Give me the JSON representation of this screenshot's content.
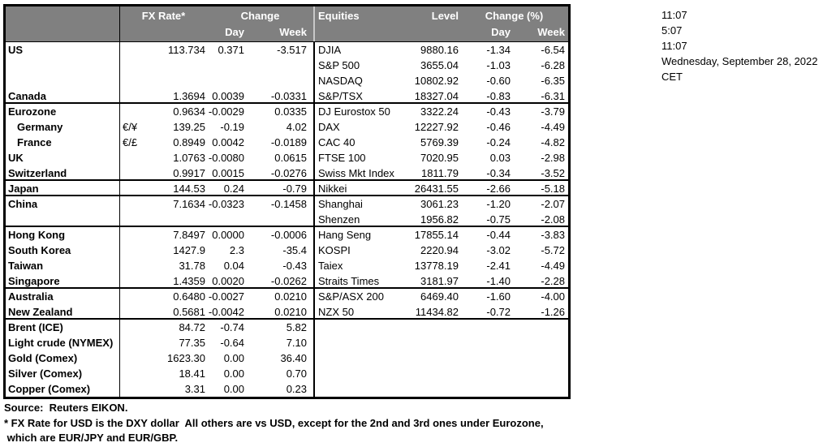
{
  "meta": {
    "times": [
      "11:07",
      "5:07",
      "11:07"
    ],
    "date": "Wednesday, September 28, 2022",
    "timezone": "CET"
  },
  "table": {
    "fx_header": {
      "rate": "FX Rate*",
      "change": "Change",
      "day": "Day",
      "week": "Week"
    },
    "eq_header": {
      "name": "Equities",
      "level": "Level",
      "change": "Change (%)",
      "day": "Day",
      "week": "Week"
    },
    "rows": [
      {
        "country": "US",
        "pair": "",
        "rate": "113.734",
        "day": "0.371",
        "week": "-3.517",
        "eq": "DJIA",
        "level": "9880.16",
        "eday": "-1.34",
        "eweek": "-6.54",
        "indent": false,
        "section_end": false
      },
      {
        "country": "",
        "pair": "",
        "rate": "",
        "day": "",
        "week": "",
        "eq": "S&P 500",
        "level": "3655.04",
        "eday": "-1.03",
        "eweek": "-6.28",
        "indent": false,
        "section_end": false
      },
      {
        "country": "",
        "pair": "",
        "rate": "",
        "day": "",
        "week": "",
        "eq": "NASDAQ",
        "level": "10802.92",
        "eday": "-0.60",
        "eweek": "-6.35",
        "indent": false,
        "section_end": false
      },
      {
        "country": "Canada",
        "pair": "",
        "rate": "1.3694",
        "day": "0.0039",
        "week": "-0.0331",
        "eq": "S&P/TSX",
        "level": "18327.04",
        "eday": "-0.83",
        "eweek": "-6.31",
        "indent": false,
        "section_end": true
      },
      {
        "country": "Eurozone",
        "pair": "",
        "rate": "0.9634",
        "day": "-0.0029",
        "week": "0.0335",
        "eq": "DJ Eurostox 50",
        "level": "3322.24",
        "eday": "-0.43",
        "eweek": "-3.79",
        "indent": false,
        "section_end": false
      },
      {
        "country": "Germany",
        "pair": "€/¥",
        "rate": "139.25",
        "day": "-0.19",
        "week": "4.02",
        "eq": "DAX",
        "level": "12227.92",
        "eday": "-0.46",
        "eweek": "-4.49",
        "indent": true,
        "section_end": false
      },
      {
        "country": "France",
        "pair": "€/£",
        "rate": "0.8949",
        "day": "0.0042",
        "week": "-0.0189",
        "eq": "CAC 40",
        "level": "5769.39",
        "eday": "-0.24",
        "eweek": "-4.82",
        "indent": true,
        "section_end": false
      },
      {
        "country": "UK",
        "pair": "",
        "rate": "1.0763",
        "day": "-0.0080",
        "week": "0.0615",
        "eq": "FTSE 100",
        "level": "7020.95",
        "eday": "0.03",
        "eweek": "-2.98",
        "indent": false,
        "section_end": false
      },
      {
        "country": "Switzerland",
        "pair": "",
        "rate": "0.9917",
        "day": "0.0015",
        "week": "-0.0276",
        "eq": "Swiss Mkt Index",
        "level": "1811.79",
        "eday": "-0.34",
        "eweek": "-3.52",
        "indent": false,
        "section_end": true
      },
      {
        "country": "Japan",
        "pair": "",
        "rate": "144.53",
        "day": "0.24",
        "week": "-0.79",
        "eq": "Nikkei",
        "level": "26431.55",
        "eday": "-2.66",
        "eweek": "-5.18",
        "indent": false,
        "section_end": true
      },
      {
        "country": "China",
        "pair": "",
        "rate": "7.1634",
        "day": "-0.0323",
        "week": "-0.1458",
        "eq": "Shanghai",
        "level": "3061.23",
        "eday": "-1.20",
        "eweek": "-2.07",
        "indent": false,
        "section_end": false
      },
      {
        "country": "",
        "pair": "",
        "rate": "",
        "day": "",
        "week": "",
        "eq": "Shenzen",
        "level": "1956.82",
        "eday": "-0.75",
        "eweek": "-2.08",
        "indent": false,
        "section_end": true
      },
      {
        "country": "Hong Kong",
        "pair": "",
        "rate": "7.8497",
        "day": "0.0000",
        "week": "-0.0006",
        "eq": "Hang Seng",
        "level": "17855.14",
        "eday": "-0.44",
        "eweek": "-3.83",
        "indent": false,
        "section_end": false
      },
      {
        "country": "South Korea",
        "pair": "",
        "rate": "1427.9",
        "day": "2.3",
        "week": "-35.4",
        "eq": "KOSPI",
        "level": "2220.94",
        "eday": "-3.02",
        "eweek": "-5.72",
        "indent": false,
        "section_end": false
      },
      {
        "country": "Taiwan",
        "pair": "",
        "rate": "31.78",
        "day": "0.04",
        "week": "-0.43",
        "eq": "Taiex",
        "level": "13778.19",
        "eday": "-2.41",
        "eweek": "-4.49",
        "indent": false,
        "section_end": false
      },
      {
        "country": "Singapore",
        "pair": "",
        "rate": "1.4359",
        "day": "0.0020",
        "week": "-0.0262",
        "eq": "Straits Times",
        "level": "3181.97",
        "eday": "-1.40",
        "eweek": "-2.28",
        "indent": false,
        "section_end": true
      },
      {
        "country": "Australia",
        "pair": "",
        "rate": "0.6480",
        "day": "-0.0027",
        "week": "0.0210",
        "eq": "S&P/ASX  200",
        "level": "6469.40",
        "eday": "-1.60",
        "eweek": "-4.00",
        "indent": false,
        "section_end": false
      },
      {
        "country": "New Zealand",
        "pair": "",
        "rate": "0.5681",
        "day": "-0.0042",
        "week": "0.0210",
        "eq": "NZX 50",
        "level": "11434.82",
        "eday": "-0.72",
        "eweek": "-1.26",
        "indent": false,
        "section_end": true
      },
      {
        "country": "Brent (ICE)",
        "pair": "",
        "rate": "84.72",
        "day": "-0.74",
        "week": "5.82",
        "eq": "",
        "level": "",
        "eday": "",
        "eweek": "",
        "indent": false,
        "section_end": false
      },
      {
        "country": "Light crude (NYMEX)",
        "pair": "",
        "rate": "77.35",
        "day": "-0.64",
        "week": "7.10",
        "eq": "",
        "level": "",
        "eday": "",
        "eweek": "",
        "indent": false,
        "section_end": false
      },
      {
        "country": "Gold (Comex)",
        "pair": "",
        "rate": "1623.30",
        "day": "0.00",
        "week": "36.40",
        "eq": "",
        "level": "",
        "eday": "",
        "eweek": "",
        "indent": false,
        "section_end": false
      },
      {
        "country": "Silver (Comex)",
        "pair": "",
        "rate": "18.41",
        "day": "0.00",
        "week": "0.70",
        "eq": "",
        "level": "",
        "eday": "",
        "eweek": "",
        "indent": false,
        "section_end": false
      },
      {
        "country": "Copper (Comex)",
        "pair": "",
        "rate": "3.31",
        "day": "0.00",
        "week": "0.23",
        "eq": "",
        "level": "",
        "eday": "",
        "eweek": "",
        "indent": false,
        "section_end": false
      }
    ]
  },
  "footer": {
    "source": "Source:  Reuters EIKON.",
    "note1": "* FX Rate for USD is the DXY dollar  All others are vs USD, except for the 2nd and 3rd ones under Eurozone,",
    "note2": " which are EUR/JPY and EUR/GBP."
  },
  "colors": {
    "header_bg": "#808080",
    "header_text": "#ffffff",
    "border": "#000000"
  }
}
